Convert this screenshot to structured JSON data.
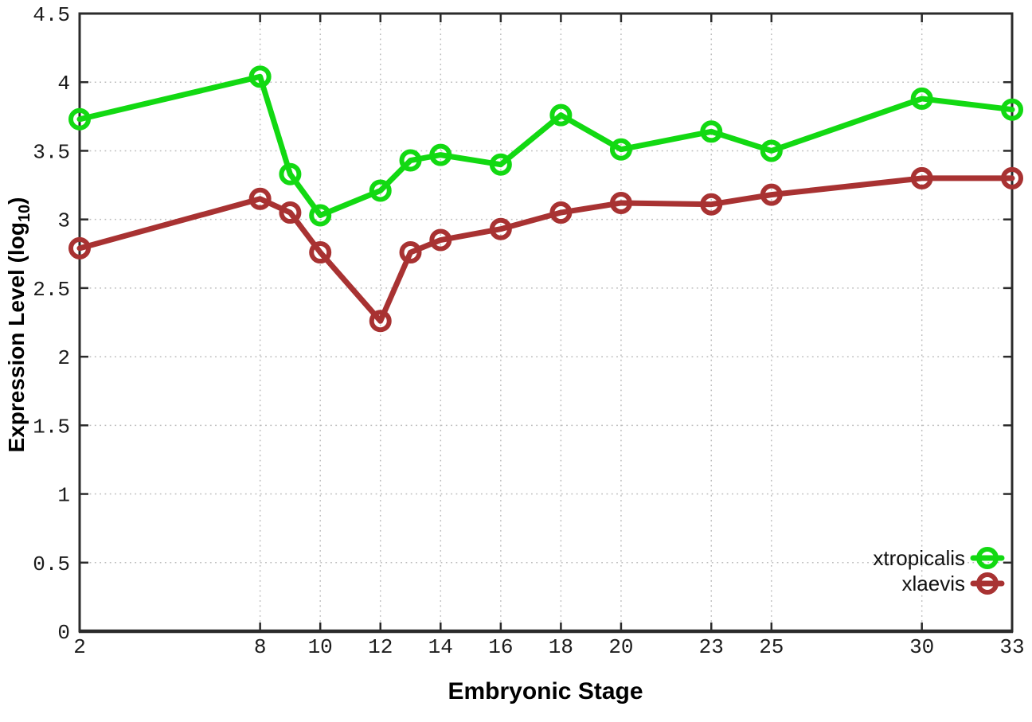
{
  "chart_data": {
    "type": "line",
    "title": "",
    "xlabel": "Embryonic Stage",
    "ylabel": {
      "prefix": "Expression Level (log",
      "sub": "10",
      "suffix": ")"
    },
    "xlim": [
      2,
      33
    ],
    "ylim": [
      0,
      4.5
    ],
    "grid": true,
    "legend_position": "bottom-right",
    "x": [
      2,
      8,
      9,
      10,
      12,
      13,
      14,
      16,
      18,
      20,
      23,
      25,
      30,
      33
    ],
    "xticks": [
      2,
      8,
      10,
      12,
      14,
      16,
      18,
      20,
      23,
      25,
      30,
      33
    ],
    "xtick_labels": [
      "2",
      "8",
      "10",
      "12",
      "14",
      "16",
      "18",
      "20",
      "23",
      "25",
      "30",
      "33"
    ],
    "yticks": [
      0,
      0.5,
      1,
      1.5,
      2,
      2.5,
      3,
      3.5,
      4,
      4.5
    ],
    "ytick_labels": [
      "0",
      "0.5",
      "1",
      "1.5",
      "2",
      "2.5",
      "3",
      "3.5",
      "4",
      "4.5"
    ],
    "series": [
      {
        "name": "xtropicalis",
        "color": "#12d912",
        "marker": "open-circle",
        "values": [
          3.73,
          4.04,
          3.33,
          3.03,
          3.21,
          3.43,
          3.47,
          3.4,
          3.76,
          3.51,
          3.64,
          3.5,
          3.88,
          3.8
        ]
      },
      {
        "name": "xlaevis",
        "color": "#a83232",
        "marker": "open-circle",
        "values": [
          2.79,
          3.15,
          3.05,
          2.76,
          2.26,
          2.76,
          2.85,
          2.93,
          3.05,
          3.12,
          3.11,
          3.18,
          3.3,
          3.3
        ]
      }
    ],
    "axis_color": "#2b2b2b",
    "grid_color": "#bcbcbc",
    "tick_label_color": "#1c1c1c"
  }
}
